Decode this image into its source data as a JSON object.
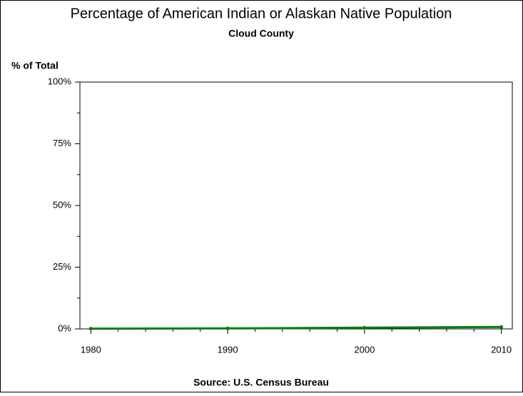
{
  "chart_data": {
    "type": "line",
    "title": "Percentage of American Indian or Alaskan Native Population",
    "subtitle": "Cloud County",
    "y_label": "% of Total",
    "source": "Source: U.S. Census Bureau",
    "x": [
      1980,
      1990,
      2000,
      2010
    ],
    "series": [
      {
        "color": "#008000",
        "values": [
          0.1,
          0.2,
          0.5,
          0.8
        ]
      }
    ],
    "xlim": [
      1979.2,
      2010.8
    ],
    "xticks": [
      1980,
      1990,
      2000,
      2010
    ],
    "xminorticks": [
      1982,
      1984,
      1986,
      1988,
      1992,
      1994,
      1996,
      1998,
      2002,
      2004,
      2006,
      2008
    ],
    "ylim": [
      0,
      100
    ],
    "yticks": [
      {
        "value": 0,
        "label": "0%"
      },
      {
        "value": 25,
        "label": "25%"
      },
      {
        "value": 50,
        "label": "50%"
      },
      {
        "value": 75,
        "label": "75%"
      },
      {
        "value": 100,
        "label": "100%"
      }
    ],
    "yminorticks": [
      12.5,
      37.5,
      62.5,
      87.5
    ]
  }
}
